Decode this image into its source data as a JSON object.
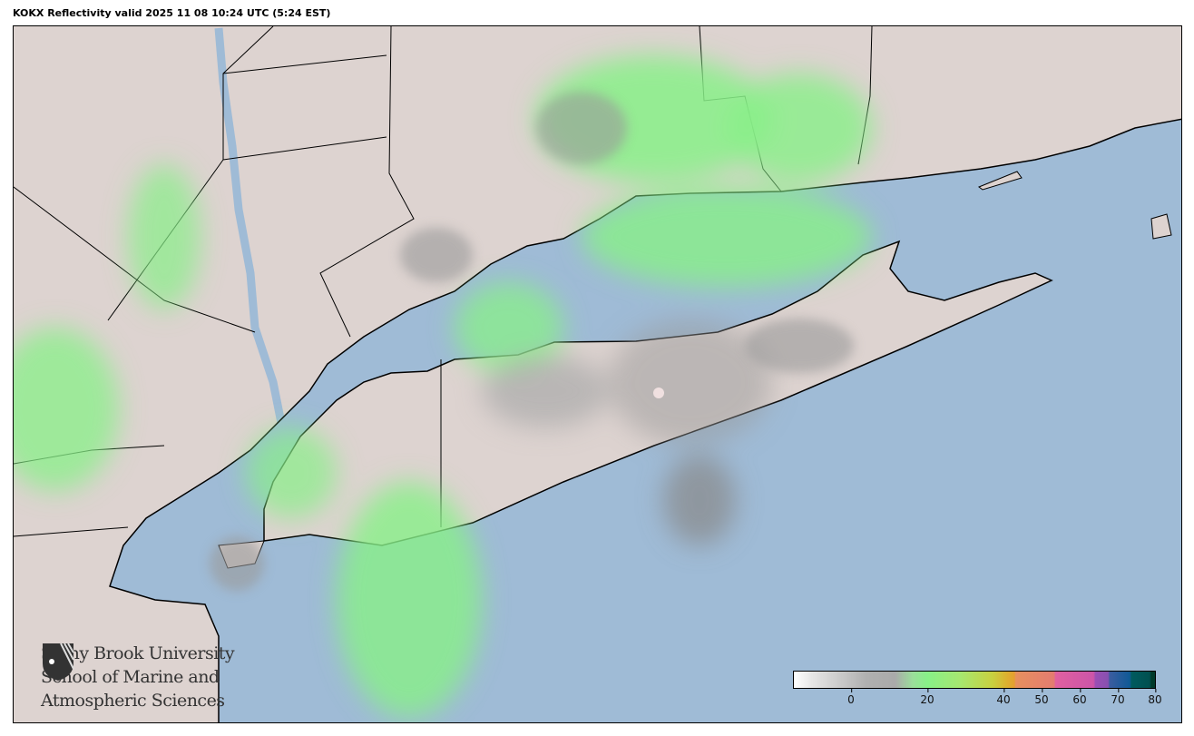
{
  "title": "KOKX Reflectivity valid 2025 11 08 10:24 UTC (5:24 EST)",
  "logo": {
    "icon": "stony-brook-shield-icon",
    "lines": [
      "Stony Brook University",
      "School of Marine and",
      "Atmospheric Sciences"
    ]
  },
  "colorbar": {
    "range": [
      -15,
      80
    ],
    "ticks": [
      "0",
      "20",
      "40",
      "50",
      "60",
      "70",
      "80"
    ],
    "colors": {
      "low": "#ffffff",
      "gray": "#aaaaaa",
      "green": "#88f088",
      "yellow": "#dcb030",
      "orange": "#e6905e",
      "pink": "#cc55a8",
      "purple": "#9a4fb4",
      "blue": "#105a96",
      "teal": "#005050"
    }
  },
  "colors": {
    "water": "#9fbbd6",
    "land": "#ddd3d0",
    "borders": "#000000",
    "radar_site": "#f0e0e0"
  }
}
